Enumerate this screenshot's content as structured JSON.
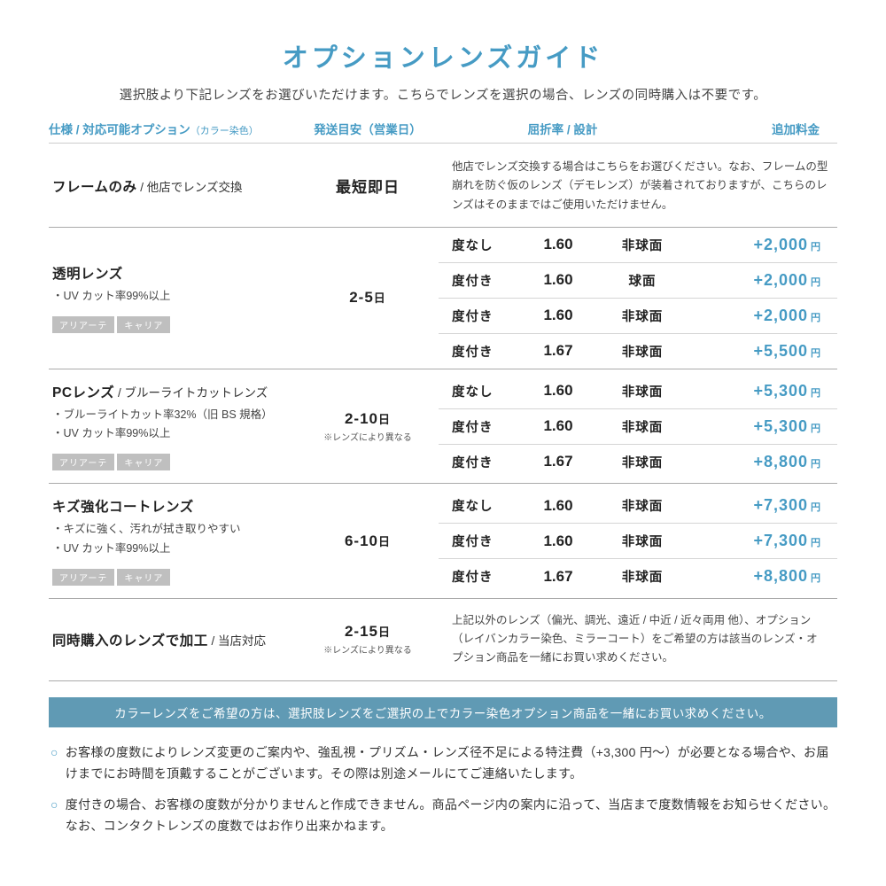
{
  "title": "オプションレンズガイド",
  "subtitle": "選択肢より下記レンズをお選びいただけます。こちらでレンズを選択の場合、レンズの同時購入は不要です。",
  "headers": {
    "spec": "仕様 / 対応可能オプション",
    "spec_note": "（カラー染色）",
    "ship": "発送目安（営業日）",
    "refr": "屈折率 / 設計",
    "price": "追加料金"
  },
  "tags": {
    "a": "アリアーテ",
    "b": "キャリア"
  },
  "sections": [
    {
      "spec_title": "フレームのみ",
      "spec_sub": " / 他店でレンズ交換",
      "ship_main": "最短即日",
      "desc": "他店でレンズ交換する場合はこちらをお選びください。なお、フレームの型崩れを防ぐ仮のレンズ（デモレンズ）が装着されておりますが、こちらのレンズはそのままではご使用いただけません。",
      "rows": []
    },
    {
      "spec_title": "透明レンズ",
      "bullets": [
        "・UV カット率99%以上"
      ],
      "has_tags": true,
      "ship_main": "2-5",
      "ship_unit": "日",
      "rows": [
        {
          "type": "度なし",
          "idx": "1.60",
          "design": "非球面",
          "price": "+2,000"
        },
        {
          "type": "度付き",
          "idx": "1.60",
          "design": "球面",
          "price": "+2,000"
        },
        {
          "type": "度付き",
          "idx": "1.60",
          "design": "非球面",
          "price": "+2,000"
        },
        {
          "type": "度付き",
          "idx": "1.67",
          "design": "非球面",
          "price": "+5,500"
        }
      ]
    },
    {
      "spec_title": "PCレンズ",
      "spec_sub": " / ブルーライトカットレンズ",
      "bullets": [
        "・ブルーライトカット率32%（旧 BS 規格）",
        "・UV カット率99%以上"
      ],
      "has_tags": true,
      "ship_main": "2-10",
      "ship_unit": "日",
      "ship_note": "※レンズにより異なる",
      "rows": [
        {
          "type": "度なし",
          "idx": "1.60",
          "design": "非球面",
          "price": "+5,300"
        },
        {
          "type": "度付き",
          "idx": "1.60",
          "design": "非球面",
          "price": "+5,300"
        },
        {
          "type": "度付き",
          "idx": "1.67",
          "design": "非球面",
          "price": "+8,800"
        }
      ]
    },
    {
      "spec_title": "キズ強化コートレンズ",
      "bullets": [
        "・キズに強く、汚れが拭き取りやすい",
        "・UV カット率99%以上"
      ],
      "has_tags": true,
      "ship_main": "6-10",
      "ship_unit": "日",
      "rows": [
        {
          "type": "度なし",
          "idx": "1.60",
          "design": "非球面",
          "price": "+7,300"
        },
        {
          "type": "度付き",
          "idx": "1.60",
          "design": "非球面",
          "price": "+7,300"
        },
        {
          "type": "度付き",
          "idx": "1.67",
          "design": "非球面",
          "price": "+8,800"
        }
      ]
    },
    {
      "spec_title": "同時購入のレンズで加工",
      "spec_sub": " / 当店対応",
      "ship_main": "2-15",
      "ship_unit": "日",
      "ship_note": "※レンズにより異なる",
      "desc": "上記以外のレンズ（偏光、調光、遠近 / 中近 / 近々両用 他）、オプション（レイバンカラー染色、ミラーコート）をご希望の方は該当のレンズ・オプション商品を一緒にお買い求めください。",
      "rows": []
    }
  ],
  "banner": "カラーレンズをご希望の方は、選択肢レンズをご選択の上でカラー染色オプション商品を一緒にお買い求めください。",
  "notes": [
    "お客様の度数によりレンズ変更のご案内や、強乱視・プリズム・レンズ径不足による特注費（+3,300 円～）が必要となる場合や、お届けまでにお時間を頂戴することがございます。その際は別途メールにてご連絡いたします。",
    "度付きの場合、お客様の度数が分かりませんと作成できません。商品ページ内の案内に沿って、当店まで度数情報をお知らせください。なお、コンタクトレンズの度数ではお作り出来かねます。"
  ],
  "yen": "円",
  "bullet": "○"
}
